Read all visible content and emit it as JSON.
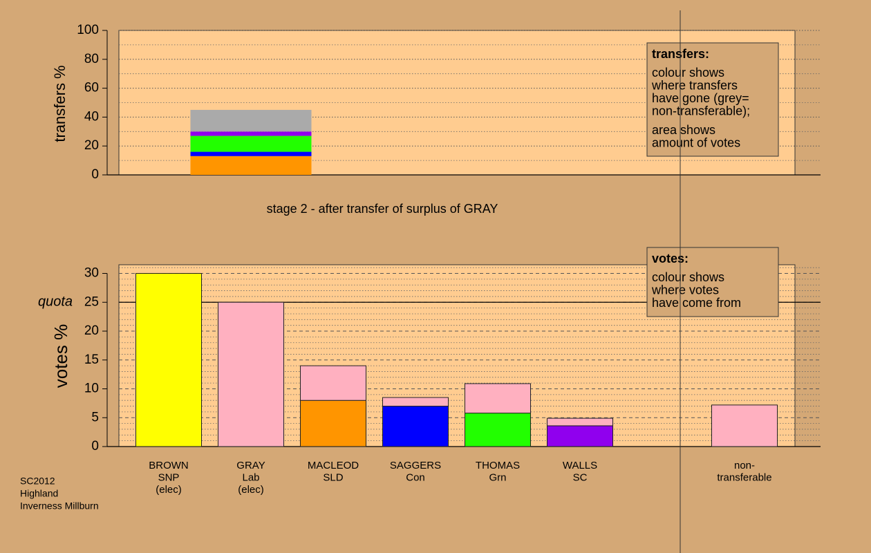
{
  "chart_data": [
    {
      "type": "bar",
      "stacked": true,
      "ylabel": "transfers %",
      "ylim": [
        0,
        100
      ],
      "yticks": [
        0,
        20,
        40,
        60,
        80,
        100
      ],
      "minor_grid_step": 10,
      "series": [
        {
          "color": "#ff9500",
          "values": [
            13
          ]
        },
        {
          "color": "#0000ff",
          "values": [
            3
          ]
        },
        {
          "color": "#22ff00",
          "values": [
            11
          ]
        },
        {
          "color": "#9000ee",
          "values": [
            3
          ]
        },
        {
          "color": "#aaaaaa",
          "values": [
            15
          ]
        }
      ],
      "legend": {
        "title": "transfers:",
        "paragraphs": [
          [
            "colour shows",
            "where transfers",
            "have gone (grey=",
            "non-transferable);"
          ],
          [
            "area shows",
            "amount of votes"
          ]
        ]
      },
      "caption": "stage 2 - after transfer of surplus of GRAY"
    },
    {
      "type": "bar",
      "stacked": true,
      "ylabel": "votes %",
      "ylim": [
        0,
        31.5
      ],
      "yticks": [
        0,
        5,
        10,
        15,
        20,
        25,
        30
      ],
      "minor_grid_step": 1,
      "quota": {
        "label": "quota",
        "value": 25
      },
      "categories": [
        [
          "BROWN",
          "SNP",
          "(elec)"
        ],
        [
          "GRAY",
          "Lab",
          "(elec)"
        ],
        [
          "MACLEOD",
          "SLD"
        ],
        [
          "SAGGERS",
          "Con"
        ],
        [
          "THOMAS",
          "Grn"
        ],
        [
          "WALLS",
          "SC"
        ],
        null,
        [
          "non-",
          "transferable"
        ]
      ],
      "series": [
        {
          "color": "#ffff00",
          "values": [
            30,
            null,
            null,
            null,
            null,
            null,
            null,
            null
          ]
        },
        {
          "color": "#ff9500",
          "values": [
            null,
            null,
            8,
            null,
            null,
            null,
            null,
            null
          ]
        },
        {
          "color": "#0000ff",
          "values": [
            null,
            null,
            null,
            7,
            null,
            null,
            null,
            null
          ]
        },
        {
          "color": "#22ff00",
          "values": [
            null,
            null,
            null,
            null,
            5.8,
            null,
            null,
            null
          ]
        },
        {
          "color": "#9000ee",
          "values": [
            null,
            null,
            null,
            null,
            null,
            3.6,
            null,
            null
          ]
        },
        {
          "color": "#ffb0c0",
          "values": [
            null,
            25,
            6,
            1.5,
            5.1,
            1.3,
            null,
            7.2
          ]
        }
      ],
      "legend": {
        "title": "votes:",
        "paragraphs": [
          [
            "colour shows",
            "where votes",
            "have come from"
          ]
        ]
      }
    }
  ],
  "footer": [
    "SC2012",
    "Highland",
    "Inverness Millburn"
  ]
}
